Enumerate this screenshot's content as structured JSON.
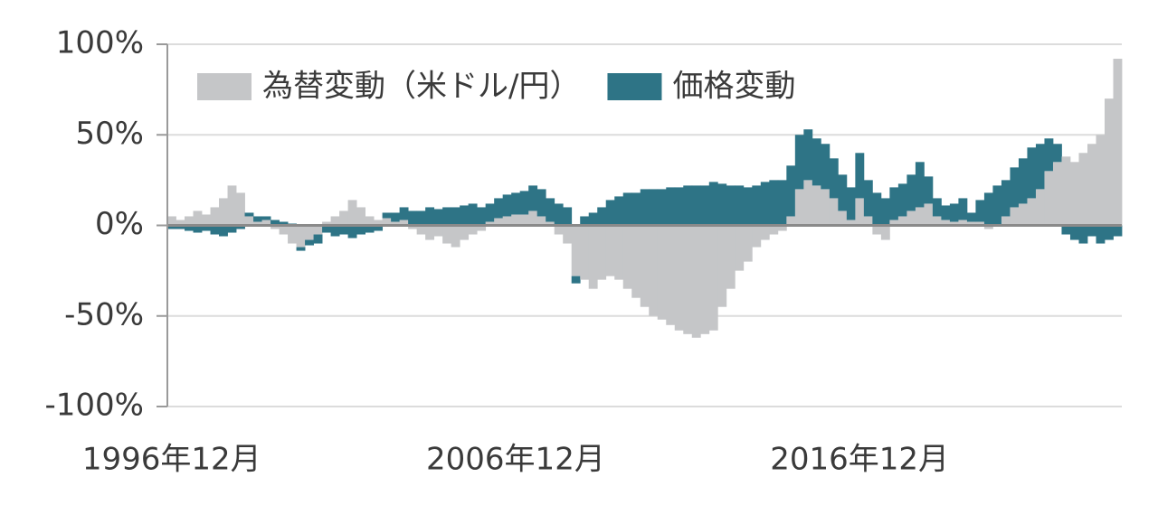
{
  "chart_data": {
    "type": "bar",
    "stacked": true,
    "categories": [
      "1996年12月",
      null,
      null,
      null,
      null,
      null,
      null,
      null,
      null,
      null,
      null,
      null,
      null,
      null,
      null,
      null,
      null,
      null,
      null,
      null,
      null,
      null,
      null,
      null,
      null,
      null,
      null,
      null,
      null,
      null,
      null,
      null,
      null,
      null,
      null,
      null,
      null,
      null,
      null,
      null,
      "2006年12月",
      null,
      null,
      null,
      null,
      null,
      null,
      null,
      null,
      null,
      null,
      null,
      null,
      null,
      null,
      null,
      null,
      null,
      null,
      null,
      null,
      null,
      null,
      null,
      null,
      null,
      null,
      null,
      null,
      null,
      null,
      null,
      null,
      null,
      null,
      null,
      null,
      null,
      null,
      null,
      "2016年12月",
      null,
      null,
      null,
      null,
      null,
      null,
      null,
      null,
      null,
      null,
      null,
      null,
      null,
      null,
      null,
      null,
      null,
      null,
      null,
      null,
      null,
      null,
      null,
      null,
      null,
      null,
      null,
      null,
      null,
      null
    ],
    "series": [
      {
        "name": "為替変動（米ドル/円）",
        "color": "#c5c6c8",
        "values": [
          5,
          3,
          5,
          8,
          6,
          10,
          15,
          22,
          18,
          5,
          2,
          3,
          -2,
          -5,
          -10,
          -12,
          -8,
          -5,
          2,
          5,
          8,
          14,
          10,
          5,
          3,
          4,
          2,
          3,
          -2,
          -5,
          -8,
          -6,
          -10,
          -12,
          -8,
          -5,
          -3,
          2,
          4,
          5,
          6,
          6,
          8,
          5,
          2,
          -5,
          -10,
          -28,
          -30,
          -35,
          -30,
          -28,
          -30,
          -35,
          -40,
          -45,
          -50,
          -52,
          -55,
          -58,
          -60,
          -62,
          -60,
          -58,
          -45,
          -35,
          -25,
          -20,
          -12,
          -8,
          -5,
          -3,
          5,
          20,
          25,
          22,
          20,
          15,
          8,
          3,
          15,
          5,
          -5,
          -8,
          3,
          5,
          8,
          10,
          12,
          5,
          3,
          2,
          3,
          2,
          2,
          -2,
          0,
          5,
          10,
          12,
          15,
          20,
          30,
          35,
          38,
          35,
          40,
          45,
          50,
          70,
          92
        ]
      },
      {
        "name": "価格変動",
        "color": "#2e7486",
        "values": [
          -2,
          -2,
          -3,
          -4,
          -3,
          -5,
          -6,
          -4,
          -2,
          2,
          3,
          2,
          3,
          2,
          1,
          -2,
          -3,
          -5,
          -4,
          -6,
          -5,
          -7,
          -5,
          -4,
          -3,
          3,
          5,
          7,
          8,
          8,
          10,
          9,
          10,
          10,
          11,
          12,
          10,
          10,
          11,
          12,
          12,
          13,
          14,
          15,
          13,
          12,
          10,
          -4,
          5,
          7,
          10,
          14,
          16,
          18,
          18,
          20,
          20,
          20,
          21,
          21,
          22,
          22,
          22,
          24,
          23,
          22,
          22,
          21,
          22,
          24,
          25,
          25,
          28,
          30,
          28,
          26,
          25,
          22,
          20,
          18,
          25,
          20,
          18,
          15,
          18,
          18,
          20,
          25,
          15,
          10,
          8,
          10,
          12,
          5,
          12,
          18,
          22,
          20,
          22,
          25,
          28,
          25,
          18,
          10,
          -5,
          -8,
          -10,
          -6,
          -10,
          -8,
          -6
        ]
      }
    ],
    "ylim": [
      -100,
      100
    ],
    "yticks": [
      {
        "value": -100,
        "label": "-100%"
      },
      {
        "value": -50,
        "label": "-50%"
      },
      {
        "value": 0,
        "label": "0%"
      },
      {
        "value": 50,
        "label": "50%"
      },
      {
        "value": 100,
        "label": "100%"
      }
    ],
    "grid": true,
    "legend": "top-left"
  }
}
